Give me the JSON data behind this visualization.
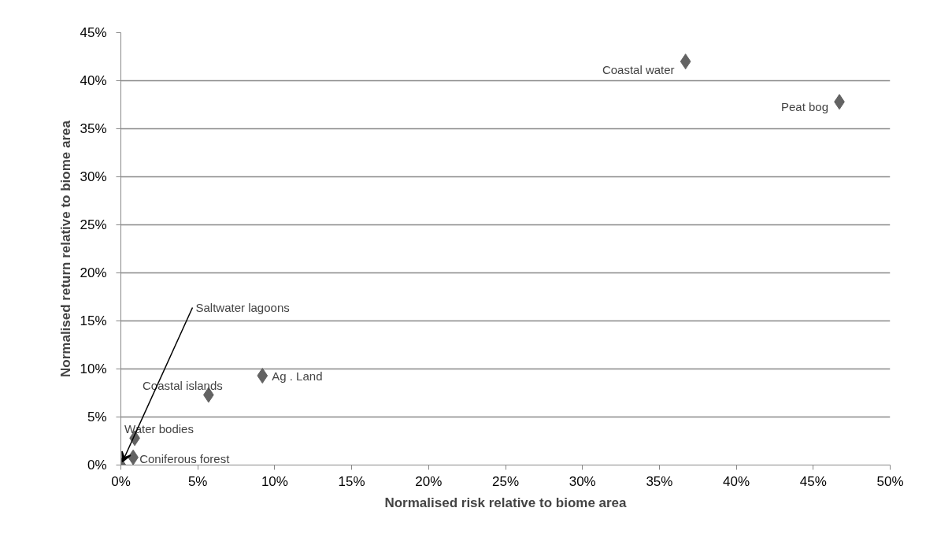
{
  "chart_data": {
    "type": "scatter",
    "xlabel": "Normalised risk relative to biome area",
    "ylabel": "Normalised return relative to biome area",
    "x": [
      36.7,
      46.7,
      9.2,
      5.7,
      0.9,
      0.8,
      0
    ],
    "series": [
      {
        "color": "#636363",
        "values": [
          42,
          37.8,
          9.3,
          7.3,
          2.8,
          0.8,
          0
        ]
      }
    ],
    "annotations": [
      {
        "text": "Coastal water",
        "x": 36.7,
        "y": 42
      },
      {
        "text": "Peat bog",
        "x": 46.7,
        "y": 37.8
      },
      {
        "text": "Ag . Land",
        "x": 9.2,
        "y": 9.3
      },
      {
        "text": "Coastal islands",
        "x": 5.7,
        "y": 7.3
      },
      {
        "text": "Water bodies",
        "x": 0.9,
        "y": 2.8
      },
      {
        "text": "Coniferous forest",
        "x": 0.8,
        "y": 0.8
      },
      {
        "text": "Saltwater lagoons",
        "x": 0,
        "y": 0
      }
    ],
    "xlim": [
      0,
      50
    ],
    "ylim": [
      0,
      45
    ],
    "xticks": [
      {
        "value": 0,
        "label": "0%"
      },
      {
        "value": 5,
        "label": "5%"
      },
      {
        "value": 10,
        "label": "10%"
      },
      {
        "value": 15,
        "label": "15%"
      },
      {
        "value": 20,
        "label": "20%"
      },
      {
        "value": 25,
        "label": "25%"
      },
      {
        "value": 30,
        "label": "30%"
      },
      {
        "value": 35,
        "label": "35%"
      },
      {
        "value": 40,
        "label": "40%"
      },
      {
        "value": 45,
        "label": "45%"
      },
      {
        "value": 50,
        "label": "50%"
      }
    ],
    "yticks": [
      {
        "value": 0,
        "label": "0%"
      },
      {
        "value": 5,
        "label": "5%"
      },
      {
        "value": 10,
        "label": "10%"
      },
      {
        "value": 15,
        "label": "15%"
      },
      {
        "value": 20,
        "label": "20%"
      },
      {
        "value": 25,
        "label": "25%"
      },
      {
        "value": 30,
        "label": "30%"
      },
      {
        "value": 35,
        "label": "35%"
      },
      {
        "value": 40,
        "label": "40%"
      },
      {
        "value": 45,
        "label": "45%"
      }
    ],
    "grid": "y",
    "marker": "diamond"
  }
}
